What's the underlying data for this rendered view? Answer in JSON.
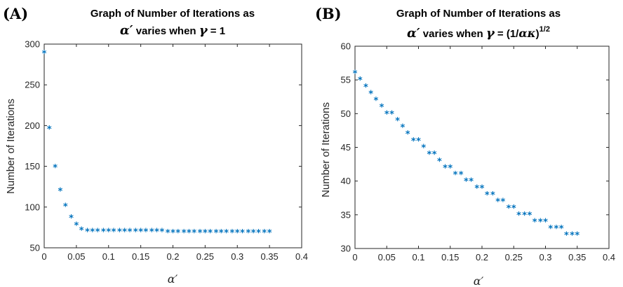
{
  "chart_data": [
    {
      "type": "scatter",
      "panel": "(A)",
      "title_line1": "Graph of Number of Iterations as",
      "title_line2": {
        "alpha": "α′",
        "mid": " varies when  ",
        "gamma": "γ",
        "tail": " = 1"
      },
      "xlabel": "α′",
      "ylabel": "Number of Iterations",
      "xlim": [
        0,
        0.4
      ],
      "ylim": [
        50,
        300
      ],
      "xticks": [
        "0",
        "0.05",
        "0.1",
        "0.15",
        "0.2",
        "0.25",
        "0.3",
        "0.35",
        "0.4"
      ],
      "yticks": [
        "50",
        "100",
        "150",
        "200",
        "250",
        "300"
      ],
      "marker": "*",
      "color": "#0072BD",
      "x": [
        0.0,
        0.008,
        0.017,
        0.025,
        0.033,
        0.042,
        0.05,
        0.058,
        0.067,
        0.075,
        0.083,
        0.092,
        0.1,
        0.108,
        0.117,
        0.125,
        0.133,
        0.142,
        0.15,
        0.158,
        0.167,
        0.175,
        0.183,
        0.192,
        0.2,
        0.208,
        0.217,
        0.225,
        0.233,
        0.242,
        0.25,
        0.258,
        0.267,
        0.275,
        0.283,
        0.292,
        0.3,
        0.308,
        0.317,
        0.325,
        0.333,
        0.342,
        0.35
      ],
      "y": [
        289,
        196,
        149,
        120,
        101,
        87,
        78,
        72,
        70,
        70,
        70,
        70,
        70,
        70,
        70,
        70,
        70,
        70,
        70,
        70,
        70,
        70,
        70,
        69,
        69,
        69,
        69,
        69,
        69,
        69,
        69,
        69,
        69,
        69,
        69,
        69,
        69,
        69,
        69,
        69,
        69,
        69,
        69
      ]
    },
    {
      "type": "scatter",
      "panel": "(B)",
      "title_line1": "Graph of Number of Iterations as",
      "title_line2": {
        "alpha": "α′",
        "mid": " varies when  ",
        "gamma": "γ",
        "tail": " = (1/",
        "ak": "ακ",
        "close": ")",
        "sup": "1/2"
      },
      "xlabel": "α′",
      "ylabel": "Number of Iterations",
      "xlim": [
        0,
        0.4
      ],
      "ylim": [
        30,
        60
      ],
      "xticks": [
        "0",
        "0.05",
        "0.1",
        "0.15",
        "0.2",
        "0.25",
        "0.3",
        "0.35",
        "0.4"
      ],
      "yticks": [
        "30",
        "35",
        "40",
        "45",
        "50",
        "55",
        "60"
      ],
      "marker": "*",
      "color": "#0072BD",
      "x": [
        0.0,
        0.008,
        0.017,
        0.025,
        0.033,
        0.042,
        0.05,
        0.058,
        0.067,
        0.075,
        0.083,
        0.092,
        0.1,
        0.108,
        0.117,
        0.125,
        0.133,
        0.142,
        0.15,
        0.158,
        0.167,
        0.175,
        0.183,
        0.192,
        0.2,
        0.208,
        0.217,
        0.225,
        0.233,
        0.242,
        0.25,
        0.258,
        0.267,
        0.275,
        0.283,
        0.292,
        0.3,
        0.308,
        0.317,
        0.325,
        0.333,
        0.342,
        0.35
      ],
      "y": [
        56,
        55,
        54,
        53,
        52,
        51,
        50,
        50,
        49,
        48,
        47,
        46,
        46,
        45,
        44,
        44,
        43,
        42,
        42,
        41,
        41,
        40,
        40,
        39,
        39,
        38,
        38,
        37,
        37,
        36,
        36,
        35,
        35,
        35,
        34,
        34,
        34,
        33,
        33,
        33,
        32,
        32,
        32
      ]
    }
  ]
}
